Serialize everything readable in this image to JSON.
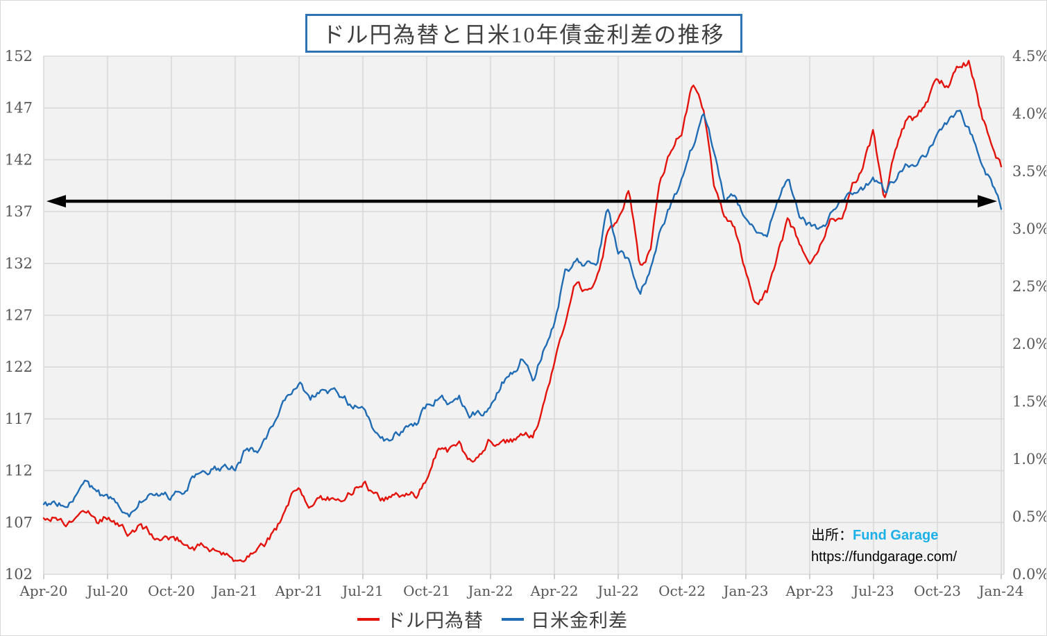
{
  "title": "ドル円為替と日米10年債金利差の推移",
  "legend": {
    "items": [
      {
        "label": "ドル円為替",
        "color": "#e3120b"
      },
      {
        "label": "日米金利差",
        "color": "#1f6cb4"
      }
    ]
  },
  "source": {
    "prefix": "出所：",
    "name": "Fund Garage",
    "name_color": "#1cb0e8",
    "url": "https://fundgarage.com/"
  },
  "chart_data": {
    "type": "line",
    "title": "ドル円為替と日米10年債金利差の推移",
    "x_range": "2020-04 to 2024-01, values sampled semi-monthly",
    "x_tick_labels": [
      "Apr-20",
      "Jul-20",
      "Oct-20",
      "Jan-21",
      "Apr-21",
      "Jul-21",
      "Oct-21",
      "Jan-22",
      "Apr-22",
      "Jul-22",
      "Oct-22",
      "Jan-23",
      "Apr-23",
      "Jul-23",
      "Oct-23",
      "Jan-24"
    ],
    "grid": true,
    "legend_position": "bottom",
    "plot_background": "#f2f2f2",
    "gridline_color": "#d9d9d9",
    "left_axis": {
      "series": "ドル円為替",
      "min": 102,
      "max": 152,
      "step": 5,
      "tick_labels": [
        "152",
        "147",
        "142",
        "137",
        "132",
        "127",
        "122",
        "117",
        "112",
        "107",
        "102"
      ]
    },
    "right_axis": {
      "series": "日米金利差",
      "min": 0.0,
      "max": 4.5,
      "step": 0.5,
      "tick_labels": [
        "4.5%",
        "4.0%",
        "3.5%",
        "3.0%",
        "2.5%",
        "2.0%",
        "1.5%",
        "1.0%",
        "0.5%",
        "0.0%"
      ]
    },
    "series": [
      {
        "name": "ドル円為替",
        "axis": "left",
        "color": "#e3120b",
        "values": [
          107.3,
          107.7,
          106.9,
          107.3,
          108.4,
          107.2,
          107.6,
          106.9,
          105.8,
          106.6,
          106.0,
          105.1,
          105.6,
          105.3,
          104.6,
          104.7,
          104.4,
          103.8,
          103.1,
          103.8,
          104.8,
          105.3,
          106.7,
          109.0,
          110.5,
          108.9,
          109.2,
          109.3,
          109.6,
          110.0,
          111.0,
          109.9,
          109.2,
          109.5,
          110.0,
          109.6,
          111.3,
          114.1,
          113.9,
          114.6,
          112.9,
          113.6,
          115.1,
          114.4,
          114.9,
          115.5,
          115.1,
          118.2,
          122.4,
          126.3,
          129.9,
          129.0,
          130.1,
          134.8,
          135.9,
          138.8,
          131.8,
          133.4,
          140.0,
          143.2,
          144.9,
          149.4,
          146.8,
          139.6,
          136.6,
          135.2,
          130.8,
          128.0,
          129.1,
          133.1,
          136.3,
          134.0,
          131.3,
          133.6,
          136.0,
          136.2,
          139.6,
          141.2,
          144.6,
          138.2,
          142.5,
          145.4,
          146.0,
          147.6,
          149.6,
          149.3,
          150.9,
          151.4,
          147.0,
          143.3,
          141.2
        ]
      },
      {
        "name": "日米金利差",
        "axis": "right",
        "color": "#1f6cb4",
        "values": [
          0.6,
          0.62,
          0.62,
          0.66,
          0.82,
          0.7,
          0.64,
          0.6,
          0.53,
          0.67,
          0.68,
          0.66,
          0.67,
          0.73,
          0.84,
          0.87,
          0.91,
          0.9,
          0.93,
          1.08,
          1.07,
          1.2,
          1.4,
          1.57,
          1.66,
          1.53,
          1.58,
          1.59,
          1.55,
          1.47,
          1.42,
          1.28,
          1.16,
          1.22,
          1.27,
          1.3,
          1.46,
          1.54,
          1.5,
          1.57,
          1.39,
          1.4,
          1.44,
          1.66,
          1.73,
          1.88,
          1.7,
          1.97,
          2.2,
          2.62,
          2.72,
          2.7,
          2.65,
          3.18,
          2.8,
          2.72,
          2.44,
          2.62,
          2.97,
          3.22,
          3.42,
          3.72,
          3.97,
          3.68,
          3.28,
          3.3,
          3.05,
          3.0,
          2.97,
          3.28,
          3.5,
          3.12,
          3.02,
          2.98,
          3.12,
          3.26,
          3.32,
          3.36,
          3.42,
          3.32,
          3.44,
          3.58,
          3.56,
          3.66,
          3.82,
          3.94,
          4.04,
          3.86,
          3.62,
          3.42,
          3.16
        ]
      }
    ],
    "annotation": {
      "type": "horizontal-double-arrow",
      "color": "#000000",
      "value_left_axis": 138.0,
      "value_right_axis": 3.24,
      "x_span": "full-plot-width"
    }
  }
}
